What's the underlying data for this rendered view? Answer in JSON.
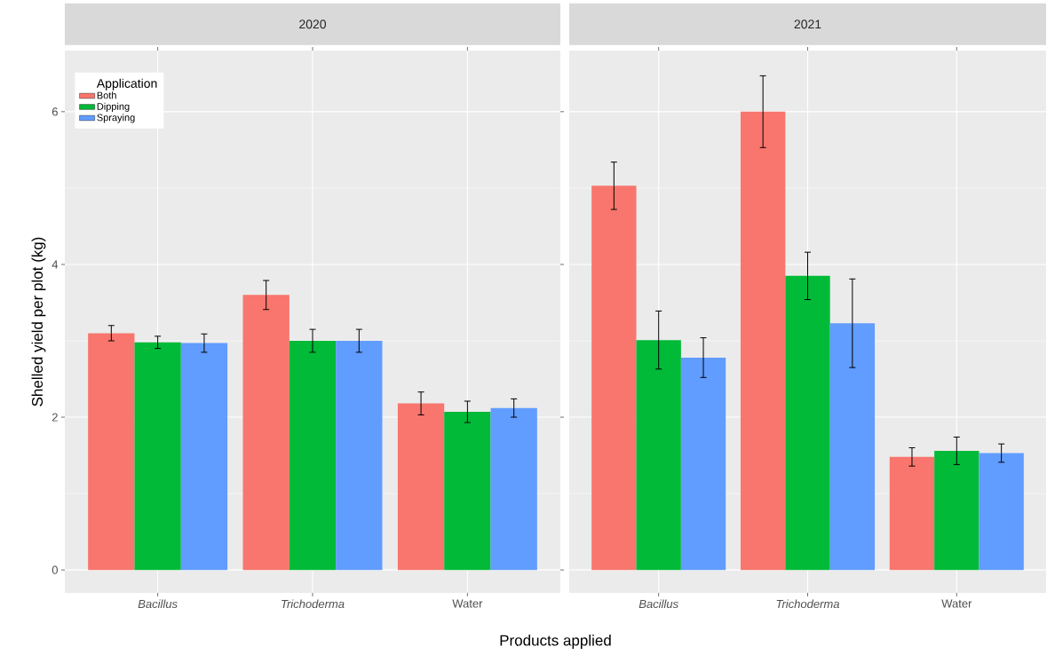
{
  "chart_data": [
    {
      "type": "bar",
      "title": "2020",
      "xlabel": "Products applied",
      "ylabel": "Shelled yield per plot (kg)",
      "legend_title": "Application",
      "legend": "top left",
      "grid": true,
      "categories": [
        "*Bacillus*",
        "*Trichoderma*",
        "Water"
      ],
      "ylim": [
        -0.3,
        6.8
      ],
      "yticks": [
        0,
        2,
        4,
        6
      ],
      "series": [
        {
          "name": "Both",
          "color": "#f8766d",
          "values": [
            3.1,
            3.6,
            2.18
          ],
          "errors": [
            0.1,
            0.19,
            0.15
          ]
        },
        {
          "name": "Dipping",
          "color": "#00ba38",
          "values": [
            2.98,
            3.0,
            2.07
          ],
          "errors": [
            0.08,
            0.15,
            0.14
          ]
        },
        {
          "name": "Spraying",
          "color": "#619cff",
          "values": [
            2.97,
            3.0,
            2.12
          ],
          "errors": [
            0.12,
            0.15,
            0.12
          ]
        }
      ]
    },
    {
      "type": "bar",
      "title": "2021",
      "grid": true,
      "tick_labels": "x",
      "categories": [
        "*Bacillus*",
        "*Trichoderma*",
        "Water"
      ],
      "ylim": [
        -0.3,
        6.8
      ],
      "yticks": [
        0,
        2,
        4,
        6
      ],
      "series": [
        {
          "color": "#f8766d",
          "values": [
            5.03,
            6.0,
            1.48
          ],
          "errors": [
            0.31,
            0.47,
            0.12
          ]
        },
        {
          "color": "#00ba38",
          "values": [
            3.01,
            3.85,
            1.56
          ],
          "errors": [
            0.38,
            0.31,
            0.18
          ]
        },
        {
          "color": "#619cff",
          "values": [
            2.78,
            3.23,
            1.53
          ],
          "errors": [
            0.26,
            0.58,
            0.12
          ]
        }
      ]
    }
  ]
}
